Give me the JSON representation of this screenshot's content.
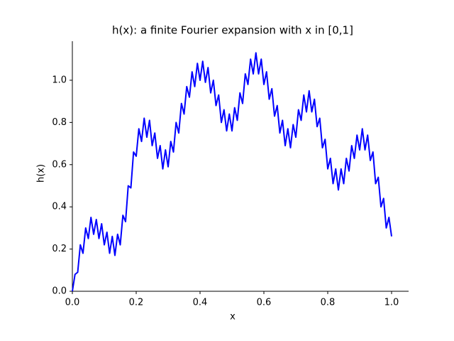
{
  "chart_data": {
    "type": "line",
    "title": "h(x): a finite Fourier expansion with x in [0,1]",
    "xlabel": "x",
    "ylabel": "h(x)",
    "xlim": [
      0,
      1.0533
    ],
    "ylim": [
      0,
      1.185
    ],
    "xticks": [
      {
        "value": 0,
        "label": "0.0"
      },
      {
        "value": 0.2,
        "label": "0.2"
      },
      {
        "value": 0.4,
        "label": "0.4"
      },
      {
        "value": 0.6,
        "label": "0.6"
      },
      {
        "value": 0.8,
        "label": "0.8"
      },
      {
        "value": 1,
        "label": "1.0"
      }
    ],
    "yticks": [
      {
        "value": 0,
        "label": "0.0"
      },
      {
        "value": 0.2,
        "label": "0.2"
      },
      {
        "value": 0.4,
        "label": "0.4"
      },
      {
        "value": 0.6,
        "label": "0.6"
      },
      {
        "value": 0.8,
        "label": "0.8"
      },
      {
        "value": 1,
        "label": "1.0"
      }
    ],
    "grid": false,
    "x": [
      0,
      0.0083,
      0.0167,
      0.025,
      0.0333,
      0.0417,
      0.05,
      0.0583,
      0.0667,
      0.075,
      0.0833,
      0.0917,
      0.1,
      0.1083,
      0.1167,
      0.125,
      0.1333,
      0.1417,
      0.15,
      0.1583,
      0.1667,
      0.175,
      0.1833,
      0.1917,
      0.2,
      0.2083,
      0.2167,
      0.225,
      0.2333,
      0.2417,
      0.25,
      0.2583,
      0.2667,
      0.275,
      0.2833,
      0.2917,
      0.3,
      0.3083,
      0.3167,
      0.325,
      0.3333,
      0.3417,
      0.35,
      0.3583,
      0.3667,
      0.375,
      0.3833,
      0.3917,
      0.4,
      0.4083,
      0.4167,
      0.425,
      0.4333,
      0.4417,
      0.45,
      0.4583,
      0.4667,
      0.475,
      0.4833,
      0.4917,
      0.5,
      0.5083,
      0.5167,
      0.525,
      0.5333,
      0.5417,
      0.55,
      0.5583,
      0.5667,
      0.575,
      0.5833,
      0.5917,
      0.6,
      0.6083,
      0.6167,
      0.625,
      0.6333,
      0.6417,
      0.65,
      0.6583,
      0.6667,
      0.675,
      0.6833,
      0.6917,
      0.7,
      0.7083,
      0.7167,
      0.725,
      0.7333,
      0.7417,
      0.75,
      0.7583,
      0.7667,
      0.775,
      0.7833,
      0.7917,
      0.8,
      0.8083,
      0.8167,
      0.825,
      0.8333,
      0.8417,
      0.85,
      0.8583,
      0.8667,
      0.875,
      0.8833,
      0.8917,
      0.9,
      0.9083,
      0.9167,
      0.925,
      0.9333,
      0.9417,
      0.95,
      0.9583,
      0.9667,
      0.975,
      0.9833,
      0.9917,
      1
    ],
    "series": [
      {
        "color": "#0000ff",
        "values": [
          0,
          0.08,
          0.09,
          0.22,
          0.18,
          0.3,
          0.25,
          0.35,
          0.27,
          0.34,
          0.25,
          0.32,
          0.22,
          0.28,
          0.18,
          0.26,
          0.17,
          0.27,
          0.22,
          0.36,
          0.33,
          0.5,
          0.49,
          0.66,
          0.64,
          0.77,
          0.71,
          0.82,
          0.73,
          0.81,
          0.69,
          0.75,
          0.63,
          0.69,
          0.58,
          0.67,
          0.59,
          0.71,
          0.66,
          0.8,
          0.75,
          0.89,
          0.84,
          0.97,
          0.92,
          1.04,
          0.97,
          1.08,
          1.0,
          1.09,
          0.99,
          1.06,
          0.94,
          1.0,
          0.88,
          0.93,
          0.8,
          0.86,
          0.76,
          0.84,
          0.76,
          0.87,
          0.81,
          0.94,
          0.89,
          1.03,
          0.98,
          1.1,
          1.03,
          1.13,
          1.03,
          1.1,
          0.98,
          1.04,
          0.91,
          0.96,
          0.83,
          0.88,
          0.75,
          0.81,
          0.69,
          0.77,
          0.68,
          0.79,
          0.73,
          0.86,
          0.81,
          0.93,
          0.85,
          0.95,
          0.85,
          0.91,
          0.78,
          0.82,
          0.68,
          0.72,
          0.58,
          0.63,
          0.51,
          0.58,
          0.48,
          0.58,
          0.51,
          0.63,
          0.57,
          0.69,
          0.63,
          0.74,
          0.67,
          0.77,
          0.67,
          0.74,
          0.62,
          0.66,
          0.51,
          0.54,
          0.4,
          0.44,
          0.3,
          0.35,
          0.26
        ]
      }
    ]
  }
}
